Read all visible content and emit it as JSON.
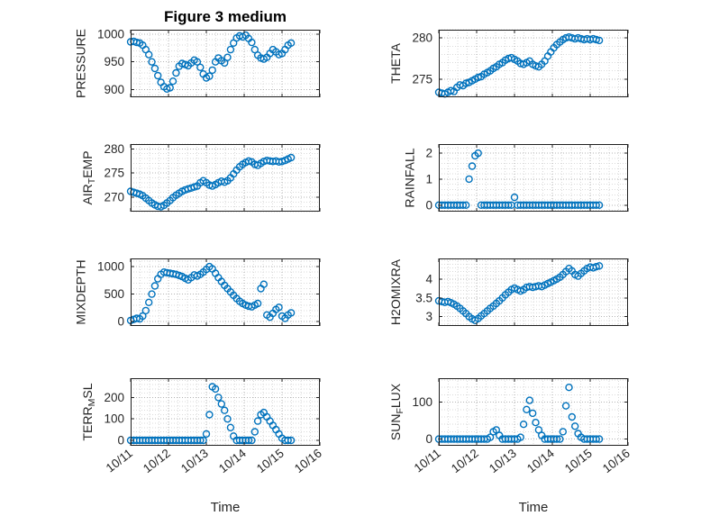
{
  "figure": {
    "title": "Figure 3 medium",
    "xlabel": "Time"
  },
  "style": {
    "background": "#ffffff",
    "marker_color": "#0072BD",
    "axis_color": "#1f1f1f",
    "tick_color": "#262626",
    "grid_color": "#b3b3b3",
    "minor_grid_color": "#dadada"
  },
  "axes": {
    "xlim": [
      0,
      5
    ],
    "xticks": [
      0,
      1,
      2,
      3,
      4,
      5
    ],
    "xtick_labels": [
      "10/11",
      "10/12",
      "10/13",
      "10/14",
      "10/15",
      "10/16"
    ],
    "x_minor_step": 0.25,
    "grid": true,
    "minor_grid": true,
    "legend": "none",
    "marker": "open-circle"
  },
  "x": [
    0,
    0.08,
    0.16,
    0.24,
    0.32,
    0.4,
    0.48,
    0.56,
    0.64,
    0.72,
    0.8,
    0.88,
    0.96,
    1.04,
    1.12,
    1.2,
    1.28,
    1.36,
    1.44,
    1.52,
    1.6,
    1.68,
    1.76,
    1.84,
    1.92,
    2,
    2.08,
    2.16,
    2.24,
    2.32,
    2.4,
    2.48,
    2.56,
    2.64,
    2.72,
    2.8,
    2.88,
    2.96,
    3.04,
    3.12,
    3.2,
    3.28,
    3.36,
    3.44,
    3.52,
    3.6,
    3.68,
    3.76,
    3.84,
    3.92,
    4,
    4.08,
    4.16,
    4.24
  ],
  "chart_data": [
    {
      "name": "PRESSURE",
      "type": "scatter",
      "ylabel_parts": [
        [
          "PRESSURE",
          false
        ]
      ],
      "yticks": [
        900,
        950,
        1000
      ],
      "ytick_labels": [
        "900",
        "950",
        "1000"
      ],
      "ylim": [
        886,
        1008
      ],
      "show_xtick_labels": false,
      "values": [
        986,
        987,
        985,
        984,
        980,
        972,
        963,
        950,
        938,
        925,
        913,
        905,
        901,
        903,
        915,
        930,
        942,
        947,
        945,
        943,
        948,
        953,
        950,
        940,
        928,
        921,
        924,
        935,
        950,
        957,
        952,
        948,
        958,
        972,
        984,
        993,
        997,
        995,
        998,
        992,
        985,
        972,
        962,
        957,
        955,
        958,
        965,
        972,
        968,
        963,
        965,
        972,
        980,
        984
      ]
    },
    {
      "name": "THETA",
      "type": "scatter",
      "ylabel_parts": [
        [
          "THETA",
          false
        ]
      ],
      "yticks": [
        275,
        280
      ],
      "ytick_labels": [
        "275",
        "280"
      ],
      "ylim": [
        272.8,
        281
      ],
      "show_xtick_labels": false,
      "values": [
        273.4,
        273.3,
        273.2,
        273.4,
        273.6,
        273.5,
        274,
        274.3,
        274.2,
        274.5,
        274.6,
        274.8,
        275,
        275.2,
        275.3,
        275.6,
        275.8,
        276,
        276.3,
        276.5,
        276.8,
        277,
        277.3,
        277.5,
        277.6,
        277.4,
        277.2,
        276.9,
        276.8,
        277,
        277.2,
        276.8,
        276.6,
        276.5,
        276.8,
        277.2,
        277.8,
        278.3,
        278.8,
        279.2,
        279.5,
        279.8,
        280,
        280.1,
        280,
        279.9,
        280,
        279.9,
        279.8,
        279.9,
        279.8,
        279.9,
        279.8,
        279.7
      ]
    },
    {
      "name": "AIR_TEMP",
      "type": "scatter",
      "ylabel_parts": [
        [
          "AIR",
          false
        ],
        [
          "T",
          true
        ],
        [
          "EMP",
          false
        ]
      ],
      "yticks": [
        270,
        275,
        280
      ],
      "ytick_labels": [
        "270",
        "275",
        "280"
      ],
      "ylim": [
        267,
        281
      ],
      "show_xtick_labels": false,
      "values": [
        271.2,
        271,
        270.8,
        270.6,
        270.3,
        269.8,
        269.3,
        268.8,
        268.4,
        268.1,
        268,
        268.3,
        268.8,
        269.3,
        269.9,
        270.4,
        270.8,
        271.2,
        271.5,
        271.7,
        271.9,
        272.1,
        272.3,
        273,
        273.4,
        273,
        272.5,
        272.3,
        272.6,
        273,
        273.3,
        273.1,
        273.4,
        274,
        274.8,
        275.6,
        276.3,
        276.8,
        277.2,
        277.5,
        277.3,
        276.8,
        276.6,
        277,
        277.4,
        277.6,
        277.5,
        277.4,
        277.5,
        277.3,
        277.4,
        277.6,
        277.9,
        278.2
      ]
    },
    {
      "name": "RAINFALL",
      "type": "scatter",
      "ylabel_parts": [
        [
          "RAINFALL",
          false
        ]
      ],
      "yticks": [
        0,
        1,
        2
      ],
      "ytick_labels": [
        "0",
        "1",
        "2"
      ],
      "ylim": [
        -0.25,
        2.35
      ],
      "show_xtick_labels": false,
      "values": [
        0,
        0,
        0,
        0,
        0,
        0,
        0,
        0,
        0,
        0,
        1,
        1.5,
        1.9,
        2,
        0,
        0,
        0,
        0,
        0,
        0,
        0,
        0,
        0,
        0,
        0,
        0.3,
        0,
        0,
        0,
        0,
        0,
        0,
        0,
        0,
        0,
        0,
        0,
        0,
        0,
        0,
        0,
        0,
        0,
        0,
        0,
        0,
        0,
        0,
        0,
        0,
        0,
        0,
        0,
        0
      ]
    },
    {
      "name": "MIXDEPTH",
      "type": "scatter",
      "ylabel_parts": [
        [
          "MIXDEPTH",
          false
        ]
      ],
      "yticks": [
        0,
        500,
        1000
      ],
      "ytick_labels": [
        "0",
        "500",
        "1000"
      ],
      "ylim": [
        -80,
        1150
      ],
      "show_xtick_labels": false,
      "values": [
        20,
        40,
        60,
        50,
        100,
        200,
        350,
        500,
        650,
        780,
        860,
        900,
        890,
        880,
        870,
        860,
        840,
        820,
        790,
        760,
        800,
        850,
        830,
        860,
        900,
        950,
        1000,
        960,
        880,
        800,
        730,
        660,
        600,
        540,
        480,
        420,
        370,
        330,
        300,
        280,
        270,
        300,
        330,
        600,
        680,
        120,
        80,
        150,
        220,
        260,
        100,
        60,
        120,
        160
      ]
    },
    {
      "name": "H2OMIXRA",
      "type": "scatter",
      "ylabel_parts": [
        [
          "H2OMIXRA",
          false
        ]
      ],
      "yticks": [
        3,
        3.5,
        4
      ],
      "ytick_labels": [
        "3",
        "3.5",
        "4"
      ],
      "ylim": [
        2.75,
        4.55
      ],
      "show_xtick_labels": false,
      "values": [
        3.42,
        3.4,
        3.38,
        3.4,
        3.37,
        3.33,
        3.28,
        3.22,
        3.15,
        3.08,
        3,
        2.94,
        2.9,
        2.95,
        3.02,
        3.08,
        3.15,
        3.22,
        3.28,
        3.35,
        3.42,
        3.5,
        3.58,
        3.65,
        3.72,
        3.76,
        3.72,
        3.68,
        3.72,
        3.78,
        3.8,
        3.78,
        3.8,
        3.82,
        3.8,
        3.84,
        3.88,
        3.92,
        3.96,
        4,
        4.05,
        4.12,
        4.2,
        4.28,
        4.22,
        4.12,
        4.08,
        4.15,
        4.22,
        4.28,
        4.32,
        4.3,
        4.33,
        4.35
      ]
    },
    {
      "name": "TERR_MSL",
      "type": "scatter",
      "ylabel_parts": [
        [
          "TERR",
          false
        ],
        [
          "M",
          true
        ],
        [
          "SL",
          false
        ]
      ],
      "yticks": [
        0,
        100,
        200
      ],
      "ytick_labels": [
        "0",
        "100",
        "200"
      ],
      "ylim": [
        -25,
        290
      ],
      "show_xtick_labels": true,
      "values": [
        0,
        0,
        0,
        0,
        0,
        0,
        0,
        0,
        0,
        0,
        0,
        0,
        0,
        0,
        0,
        0,
        0,
        0,
        0,
        0,
        0,
        0,
        0,
        0,
        0,
        30,
        120,
        250,
        240,
        200,
        170,
        140,
        100,
        60,
        20,
        0,
        0,
        0,
        0,
        0,
        0,
        40,
        90,
        120,
        130,
        110,
        90,
        70,
        50,
        30,
        10,
        0,
        0,
        0
      ]
    },
    {
      "name": "SUN_FLUX",
      "type": "scatter",
      "ylabel_parts": [
        [
          "SUN",
          false
        ],
        [
          "F",
          true
        ],
        [
          "LUX",
          false
        ]
      ],
      "yticks": [
        0,
        100
      ],
      "ytick_labels": [
        "0",
        "100"
      ],
      "ylim": [
        -18,
        165
      ],
      "show_xtick_labels": true,
      "values": [
        0,
        0,
        0,
        0,
        0,
        0,
        0,
        0,
        0,
        0,
        0,
        0,
        0,
        0,
        0,
        0,
        0,
        5,
        20,
        25,
        10,
        0,
        0,
        0,
        0,
        0,
        0,
        5,
        40,
        80,
        105,
        70,
        45,
        25,
        10,
        0,
        0,
        0,
        0,
        0,
        0,
        20,
        90,
        140,
        60,
        35,
        15,
        5,
        0,
        0,
        0,
        0,
        0,
        0
      ]
    }
  ]
}
